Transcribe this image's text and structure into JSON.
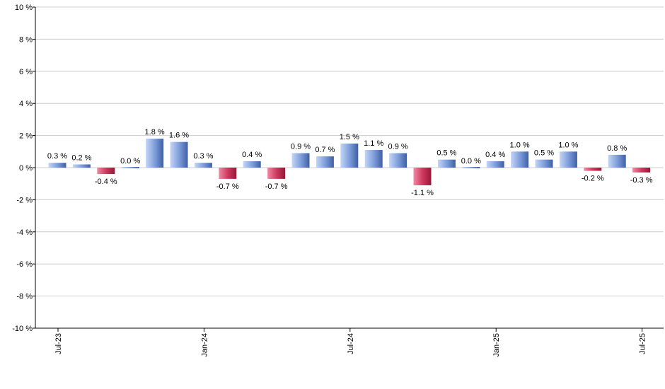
{
  "chart_data": {
    "type": "bar",
    "x": [
      "2023-07",
      "2023-08",
      "2023-09",
      "2023-10",
      "2023-11",
      "2023-12",
      "2024-01",
      "2024-02",
      "2024-03",
      "2024-04",
      "2024-05",
      "2024-06",
      "2024-07",
      "2024-08",
      "2024-09",
      "2024-10",
      "2024-11",
      "2024-12",
      "2025-01",
      "2025-02",
      "2025-03",
      "2025-04",
      "2025-05",
      "2025-06",
      "2025-07"
    ],
    "values": [
      0.3,
      0.2,
      -0.4,
      0.0,
      1.8,
      1.6,
      0.3,
      -0.7,
      0.4,
      -0.7,
      0.9,
      0.7,
      1.5,
      1.1,
      0.9,
      -1.1,
      0.5,
      0.0,
      0.4,
      1.0,
      0.5,
      1.0,
      -0.2,
      0.8,
      -0.3
    ],
    "data_labels": [
      "0.3 %",
      "0.2 %",
      "-0.4 %",
      "0.0 %",
      "1.8 %",
      "1.6 %",
      "0.3 %",
      "-0.7 %",
      "0.4 %",
      "-0.7 %",
      "0.9 %",
      "0.7 %",
      "1.5 %",
      "1.1 %",
      "0.9 %",
      "-1.1 %",
      "0.5 %",
      "0.0 %",
      "0.4 %",
      "1.0 %",
      "0.5 %",
      "1.0 %",
      "-0.2 %",
      "0.8 %",
      "-0.3 %"
    ],
    "ylim": [
      -10,
      10
    ],
    "y_ticks": [
      10,
      8,
      6,
      4,
      2,
      0,
      -2,
      -4,
      -6,
      -8,
      -10
    ],
    "y_tick_labels": [
      "10 %",
      "8 %",
      "6 %",
      "4 %",
      "2 %",
      "0 %",
      "-2 %",
      "-4 %",
      "-6 %",
      "-8 %",
      "-10 %"
    ],
    "x_tick_labels": [
      {
        "index": 0,
        "label": "Jul-23"
      },
      {
        "index": 6,
        "label": "Jan-24"
      },
      {
        "index": 12,
        "label": "Jul-24"
      },
      {
        "index": 18,
        "label": "Jan-25"
      },
      {
        "index": 24,
        "label": "Jul-25"
      }
    ],
    "grid": true,
    "legend": "none",
    "colors": {
      "positive_light": "#a9c3f0",
      "positive_dark": "#4a6bb0",
      "negative_light": "#e07090",
      "negative_dark": "#a01a40",
      "grid": "#cccccc",
      "axis": "#000000"
    }
  }
}
